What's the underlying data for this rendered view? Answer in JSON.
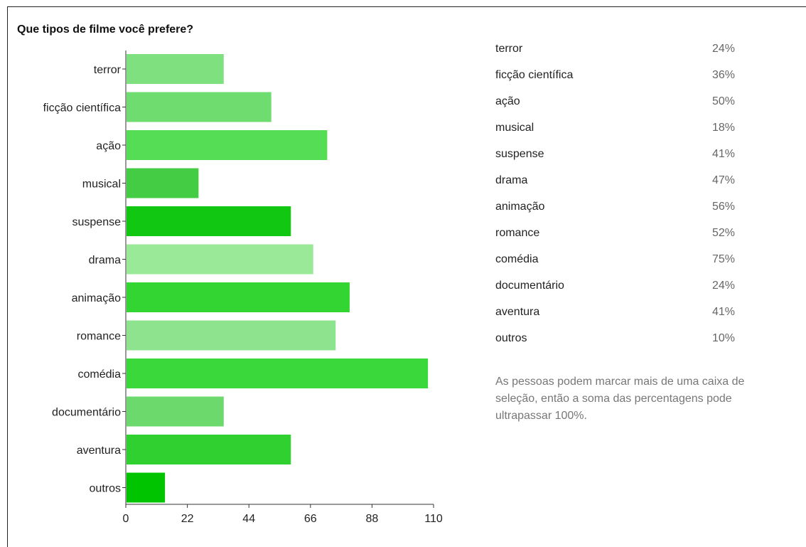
{
  "chart_data": {
    "type": "bar",
    "orientation": "horizontal",
    "title": "Que tipos de filme você prefere?",
    "categories": [
      "terror",
      "ficção científica",
      "ação",
      "musical",
      "suspense",
      "drama",
      "animação",
      "romance",
      "comédia",
      "documentário",
      "aventura",
      "outros"
    ],
    "values": [
      35,
      52,
      72,
      26,
      59,
      67,
      80,
      75,
      108,
      35,
      59,
      14
    ],
    "bar_colors": [
      "#7ee07e",
      "#6fdc6f",
      "#55dd55",
      "#44cc44",
      "#11c711",
      "#99e999",
      "#33d533",
      "#8ee48e",
      "#3bd83b",
      "#6bd96b",
      "#2fd02f",
      "#00c400"
    ],
    "xlim": [
      0,
      110
    ],
    "xticks": [
      0,
      22,
      44,
      66,
      88,
      110
    ],
    "xlabel": "",
    "ylabel": "",
    "grid": false,
    "legend": "none"
  },
  "summary": {
    "rows": [
      {
        "label": "terror",
        "value": "24%"
      },
      {
        "label": "ficção científica",
        "value": "36%"
      },
      {
        "label": "ação",
        "value": "50%"
      },
      {
        "label": "musical",
        "value": "18%"
      },
      {
        "label": "suspense",
        "value": "41%"
      },
      {
        "label": "drama",
        "value": "47%"
      },
      {
        "label": "animação",
        "value": "56%"
      },
      {
        "label": "romance",
        "value": "52%"
      },
      {
        "label": "comédia",
        "value": "75%"
      },
      {
        "label": "documentário",
        "value": "24%"
      },
      {
        "label": "aventura",
        "value": "41%"
      },
      {
        "label": "outros",
        "value": "10%"
      }
    ],
    "footnote": "As pessoas podem marcar mais de uma caixa de seleção, então a soma das percentagens pode ultrapassar 100%."
  }
}
